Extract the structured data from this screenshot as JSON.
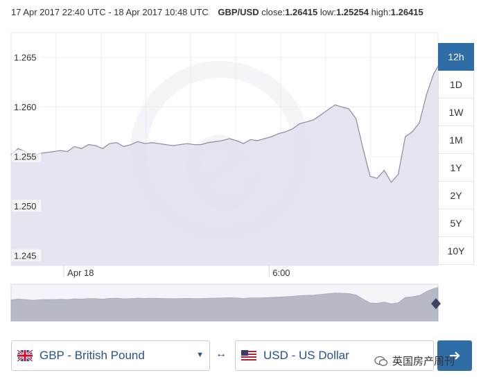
{
  "header": {
    "date_range": "17 Apr 2017 22:40 UTC - 18 Apr 2017 10:48 UTC",
    "pair": "GBP/USD",
    "close_label": "close:",
    "close_value": "1.26415",
    "low_label": "low:",
    "low_value": "1.25254",
    "high_label": "high:",
    "high_value": "1.26415"
  },
  "ranges": [
    "12h",
    "1D",
    "1W",
    "1M",
    "1Y",
    "2Y",
    "5Y",
    "10Y"
  ],
  "active_range": "12h",
  "from_currency": "GBP - British Pound",
  "to_currency": "USD - US Dollar",
  "swap_symbol": "↔",
  "caret": "▼",
  "watermark_text": "英国房产周刊",
  "colors": {
    "accent": "#2f6da7",
    "line": "#8d92a8",
    "area": "#dfe1ec",
    "nav_area": "#b7bac6"
  },
  "chart_data": {
    "type": "area",
    "title": "",
    "xlabel": "",
    "ylabel": "",
    "ylim": [
      1.244,
      1.2675
    ],
    "yticks": [
      1.245,
      1.25,
      1.255,
      1.26,
      1.265
    ],
    "ytick_labels": [
      "1.245",
      "1.250",
      "1.255",
      "1.260",
      "1.265"
    ],
    "xticks": [
      {
        "x": 1.5,
        "label": "Apr 18"
      },
      {
        "x": 7.33,
        "label": "6:00"
      }
    ],
    "x_unit": "hours since 17 Apr 2017 22:40 UTC",
    "xlim": [
      0,
      12.13
    ],
    "grid": true,
    "series": [
      {
        "x": [
          0,
          0.2,
          0.4,
          0.6,
          0.8,
          1.0,
          1.2,
          1.4,
          1.6,
          1.8,
          2.0,
          2.2,
          2.4,
          2.6,
          2.8,
          3.0,
          3.2,
          3.4,
          3.6,
          3.8,
          4.0,
          4.2,
          4.4,
          4.6,
          4.8,
          5.0,
          5.2,
          5.4,
          5.6,
          5.8,
          6.0,
          6.2,
          6.4,
          6.6,
          6.8,
          7.0,
          7.2,
          7.4,
          7.6,
          7.8,
          8.0,
          8.2,
          8.4,
          8.6,
          8.8,
          9.0,
          9.2,
          9.4,
          9.6,
          9.8,
          10.0,
          10.2,
          10.4,
          10.6,
          10.8,
          11.0,
          11.2,
          11.4,
          11.6,
          11.8,
          12.0,
          12.13
        ],
        "y": [
          1.2552,
          1.2558,
          1.2555,
          1.2549,
          1.2553,
          1.2554,
          1.2555,
          1.2556,
          1.2555,
          1.256,
          1.2558,
          1.2562,
          1.2561,
          1.2558,
          1.2563,
          1.2564,
          1.256,
          1.2562,
          1.2565,
          1.2563,
          1.2564,
          1.2563,
          1.2562,
          1.2561,
          1.2562,
          1.2563,
          1.2562,
          1.2562,
          1.2564,
          1.2565,
          1.2566,
          1.2568,
          1.2566,
          1.2563,
          1.2567,
          1.2566,
          1.2568,
          1.257,
          1.2573,
          1.2575,
          1.2578,
          1.2583,
          1.2585,
          1.2587,
          1.2592,
          1.2597,
          1.2602,
          1.26,
          1.2598,
          1.2588,
          1.2558,
          1.253,
          1.2528,
          1.2536,
          1.2524,
          1.2532,
          1.257,
          1.2575,
          1.2584,
          1.2612,
          1.2633,
          1.2641
        ]
      }
    ]
  }
}
